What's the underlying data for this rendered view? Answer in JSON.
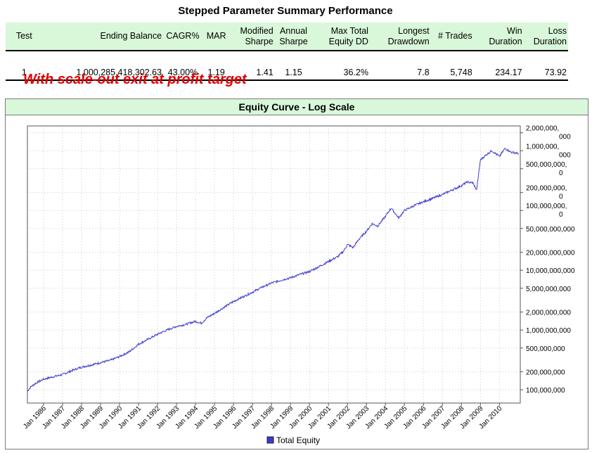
{
  "header": {
    "title": "Stepped Parameter Summary Performance"
  },
  "table": {
    "columns": [
      "Test",
      "Ending Balance",
      "CAGR%",
      "MAR",
      "Modified Sharpe",
      "Annual Sharpe",
      "Max Total Equity DD",
      "Longest Drawdown",
      "# Trades",
      "Win Duration",
      "Loss Duration"
    ],
    "columns_display": [
      [
        "Test"
      ],
      [
        "Ending Balance"
      ],
      [
        "CAGR%"
      ],
      [
        "MAR"
      ],
      [
        "Modified",
        "Sharpe"
      ],
      [
        "Annual",
        "Sharpe"
      ],
      [
        "Max Total",
        "Equity DD"
      ],
      [
        "Longest",
        "Drawdown"
      ],
      [
        "# Trades"
      ],
      [
        "Win",
        "Duration"
      ],
      [
        "Loss",
        "Duration"
      ]
    ],
    "rows": [
      [
        "1",
        "1,000,285,418,302.63",
        "43.00%",
        "1.19",
        "1.41",
        "1.15",
        "36.2%",
        "7.8",
        "5,748",
        "234.17",
        "73.92"
      ]
    ]
  },
  "annotation": "With scale-out exit at profit target",
  "chart": {
    "title": "Equity Curve - Log Scale",
    "legend": "Total Equity",
    "line_color": "#3a3ad0",
    "header_bg": "#d9f7d9"
  },
  "chart_data": {
    "type": "line",
    "title": "Equity Curve - Log Scale",
    "y_scale": "log",
    "ylim": [
      60000000,
      2600000000000
    ],
    "y_ticks": [
      100000000,
      200000000,
      500000000,
      1000000000,
      2000000000,
      5000000000,
      10000000000,
      20000000000,
      50000000000,
      100000000000,
      200000000000,
      500000000000,
      1000000000000,
      2000000000000
    ],
    "y_tick_labels": [
      [
        "100,000,000"
      ],
      [
        "200,000,000"
      ],
      [
        "500,000,000"
      ],
      [
        "1,000,000,000"
      ],
      [
        "2,000,000,000"
      ],
      [
        "5,000,000,000"
      ],
      [
        "10,000,000,000"
      ],
      [
        "20,000,000,000"
      ],
      [
        "50,000,000,000"
      ],
      [
        "100,000,000,",
        "0"
      ],
      [
        "200,000,000,",
        "0"
      ],
      [
        "500,000,000,",
        "0"
      ],
      [
        "1,000,000,",
        "000"
      ],
      [
        "2,000,000,",
        "000"
      ]
    ],
    "x_tick_labels": [
      "Jan 1986",
      "Jan 1987",
      "Jan 1988",
      "Jan 1989",
      "Jan 1990",
      "Jan 1991",
      "Jan 1992",
      "Jan 1993",
      "Jan 1994",
      "Jan 1995",
      "Jan 1996",
      "Jan 1997",
      "Jan 1998",
      "Jan 1999",
      "Jan 2000",
      "Jan 2001",
      "Jan 2002",
      "Jan 2003",
      "Jan 2004",
      "Jan 2005",
      "Jan 2006",
      "Jan 2007",
      "Jan 2008",
      "Jan 2009",
      "Jan 2010"
    ],
    "x_range_years": [
      1985.15,
      2011.1
    ],
    "series": [
      {
        "name": "Total Equity",
        "x": [
          1985.15,
          1985.3,
          1985.6,
          1986.0,
          1986.5,
          1987.0,
          1987.5,
          1988.0,
          1988.5,
          1989.0,
          1989.5,
          1990.0,
          1990.5,
          1991.0,
          1991.5,
          1992.0,
          1992.5,
          1993.0,
          1993.5,
          1994.0,
          1994.3,
          1994.6,
          1995.0,
          1995.5,
          1996.0,
          1996.5,
          1997.0,
          1997.5,
          1998.0,
          1998.5,
          1999.0,
          1999.5,
          2000.0,
          2000.5,
          2001.0,
          2001.5,
          2001.8,
          2002.0,
          2002.3,
          2002.6,
          2003.0,
          2003.3,
          2003.6,
          2004.0,
          2004.3,
          2004.7,
          2005.0,
          2005.5,
          2006.0,
          2006.5,
          2007.0,
          2007.5,
          2008.0,
          2008.3,
          2008.6,
          2008.8,
          2009.0,
          2009.3,
          2009.6,
          2010.0,
          2010.3,
          2010.6,
          2011.0
        ],
        "y": [
          95000000,
          110000000,
          130000000,
          150000000,
          165000000,
          180000000,
          210000000,
          240000000,
          260000000,
          285000000,
          310000000,
          360000000,
          430000000,
          580000000,
          700000000,
          850000000,
          1000000000,
          1150000000,
          1250000000,
          1400000000,
          1300000000,
          1600000000,
          1900000000,
          2400000000,
          3000000000,
          3600000000,
          4300000000,
          5200000000,
          6100000000,
          6800000000,
          7500000000,
          8500000000,
          9500000000,
          11500000000,
          14000000000,
          17000000000,
          21000000000,
          27000000000,
          24000000000,
          33000000000,
          45000000000,
          60000000000,
          55000000000,
          80000000000,
          110000000000,
          75000000000,
          100000000000,
          120000000000,
          140000000000,
          160000000000,
          185000000000,
          220000000000,
          260000000000,
          300000000000,
          290000000000,
          220000000000,
          700000000000,
          850000000000,
          1000000000000,
          800000000000,
          1100000000000,
          950000000000,
          900000000000
        ]
      }
    ],
    "grid": true,
    "legend_position": "bottom-center"
  }
}
